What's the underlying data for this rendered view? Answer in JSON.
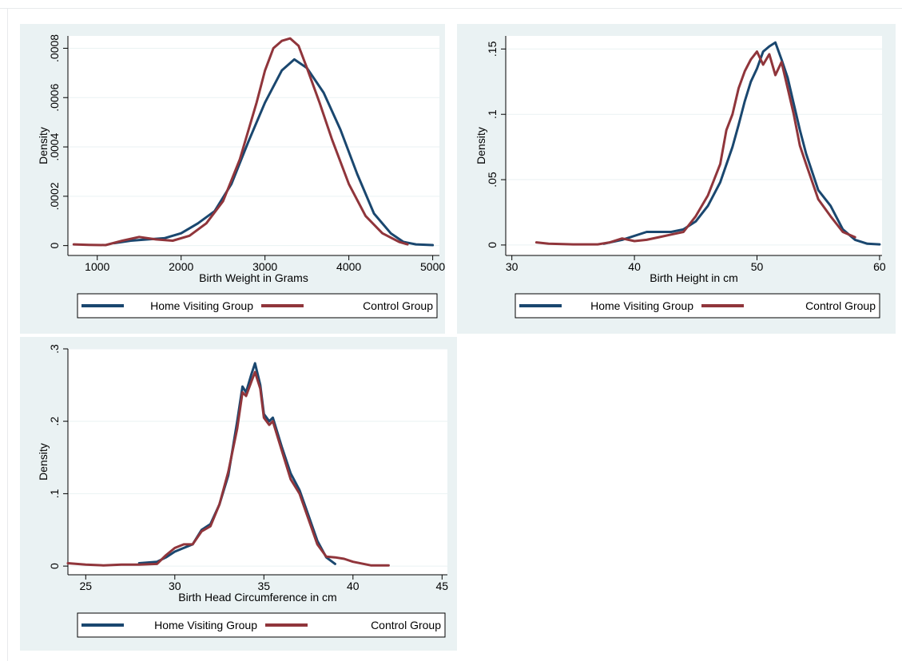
{
  "colors": {
    "panel_bg": "#eaf2f3",
    "plot_bg": "#ffffff",
    "grid": "#eaf2f3",
    "home_visiting": "#1a476f",
    "control": "#90353b"
  },
  "chart_data": [
    {
      "type": "line",
      "xlabel": "Birth Weight in Grams",
      "ylabel": "Density",
      "xlim": [
        650,
        5080
      ],
      "ylim": [
        -4e-05,
        0.00085
      ],
      "xticks": [
        1000,
        2000,
        3000,
        4000,
        5000
      ],
      "xtick_labels": [
        "1000",
        "2000",
        "3000",
        "4000",
        "5000"
      ],
      "yticks": [
        0,
        0.0002,
        0.0004,
        0.0006,
        0.0008
      ],
      "ytick_labels": [
        "0",
        ".0002",
        ".0004",
        ".0006",
        ".0008"
      ],
      "grid": true,
      "legend": {
        "position": "bottom",
        "entries": [
          "Home Visiting Group",
          "Control Group"
        ]
      },
      "series": [
        {
          "name": "Home Visiting Group",
          "color": "#1a476f",
          "x": [
            1200,
            1400,
            1600,
            1800,
            2000,
            2200,
            2400,
            2600,
            2800,
            3000,
            3200,
            3350,
            3500,
            3700,
            3900,
            4100,
            4300,
            4500,
            4650,
            4800,
            5000
          ],
          "y": [
            1e-05,
            2e-05,
            2.5e-05,
            3e-05,
            5e-05,
            9e-05,
            0.00014,
            0.00025,
            0.00042,
            0.00058,
            0.00071,
            0.000755,
            0.00072,
            0.00062,
            0.00047,
            0.00029,
            0.00013,
            5e-05,
            1.5e-05,
            5e-06,
            2e-06
          ]
        },
        {
          "name": "Control Group",
          "color": "#90353b",
          "x": [
            720,
            900,
            1100,
            1300,
            1500,
            1700,
            1900,
            2100,
            2300,
            2500,
            2700,
            2900,
            3000,
            3100,
            3200,
            3300,
            3400,
            3500,
            3650,
            3800,
            4000,
            4200,
            4400,
            4600,
            4700
          ],
          "y": [
            5e-06,
            3e-06,
            2e-06,
            2e-05,
            3.5e-05,
            2.5e-05,
            2e-05,
            4e-05,
            9e-05,
            0.00018,
            0.00035,
            0.00058,
            0.00071,
            0.0008,
            0.00083,
            0.00084,
            0.00081,
            0.00072,
            0.00058,
            0.00043,
            0.00025,
            0.00012,
            5e-05,
            1.5e-05,
            5e-06
          ]
        }
      ]
    },
    {
      "type": "line",
      "xlabel": "Birth Height in cm",
      "ylabel": "Density",
      "xlim": [
        29.5,
        60.2
      ],
      "ylim": [
        -0.008,
        0.16
      ],
      "xticks": [
        30,
        40,
        50,
        60
      ],
      "xtick_labels": [
        "30",
        "40",
        "50",
        "60"
      ],
      "yticks": [
        0,
        0.05,
        0.1,
        0.15
      ],
      "ytick_labels": [
        "0",
        ".05",
        ".1",
        ".15"
      ],
      "grid": true,
      "legend": {
        "position": "bottom",
        "entries": [
          "Home Visiting Group",
          "Control Group"
        ]
      },
      "series": [
        {
          "name": "Home Visiting Group",
          "color": "#1a476f",
          "x": [
            37.5,
            39,
            41,
            43,
            44,
            45,
            46,
            47,
            48,
            48.5,
            49,
            49.5,
            50,
            50.5,
            51,
            51.5,
            52,
            52.5,
            53,
            53.5,
            54,
            55,
            56,
            57,
            58,
            59,
            60
          ],
          "y": [
            0.001,
            0.004,
            0.01,
            0.01,
            0.012,
            0.018,
            0.03,
            0.048,
            0.075,
            0.092,
            0.11,
            0.125,
            0.135,
            0.148,
            0.152,
            0.155,
            0.142,
            0.128,
            0.108,
            0.088,
            0.07,
            0.042,
            0.03,
            0.012,
            0.004,
            0.001,
            0.0005
          ]
        },
        {
          "name": "Control Group",
          "color": "#90353b",
          "x": [
            32,
            33,
            35,
            37,
            38,
            39,
            40,
            41,
            42,
            43,
            44,
            45,
            46,
            47,
            47.5,
            48,
            48.5,
            49,
            49.5,
            50,
            50.5,
            51,
            51.5,
            52,
            52.5,
            53,
            53.5,
            54,
            55,
            56,
            57,
            58
          ],
          "y": [
            0.002,
            0.001,
            0.0005,
            0.0005,
            0.002,
            0.005,
            0.003,
            0.004,
            0.006,
            0.008,
            0.01,
            0.022,
            0.038,
            0.062,
            0.088,
            0.1,
            0.12,
            0.133,
            0.142,
            0.148,
            0.138,
            0.146,
            0.13,
            0.14,
            0.12,
            0.1,
            0.076,
            0.062,
            0.035,
            0.022,
            0.01,
            0.006
          ]
        }
      ]
    },
    {
      "type": "line",
      "xlabel": "Birth Head Circumference in cm",
      "ylabel": "Density",
      "xlim": [
        24,
        45.3
      ],
      "ylim": [
        -0.012,
        0.3
      ],
      "xticks": [
        25,
        30,
        35,
        40,
        45
      ],
      "xtick_labels": [
        "25",
        "30",
        "35",
        "40",
        "45"
      ],
      "yticks": [
        0,
        0.1,
        0.2,
        0.3
      ],
      "ytick_labels": [
        "0",
        ".1",
        ".2",
        ".3"
      ],
      "grid": true,
      "legend": {
        "position": "bottom",
        "entries": [
          "Home Visiting Group",
          "Control Group"
        ]
      },
      "series": [
        {
          "name": "Home Visiting Group",
          "color": "#1a476f",
          "x": [
            28,
            29,
            29.5,
            30,
            30.5,
            31,
            31.5,
            32,
            32.5,
            33,
            33.5,
            33.8,
            34,
            34.3,
            34.5,
            34.8,
            35,
            35.3,
            35.5,
            36,
            36.5,
            37,
            37.5,
            38,
            38.5,
            39
          ],
          "y": [
            0.004,
            0.006,
            0.012,
            0.02,
            0.025,
            0.03,
            0.05,
            0.058,
            0.085,
            0.125,
            0.2,
            0.248,
            0.24,
            0.265,
            0.28,
            0.25,
            0.21,
            0.2,
            0.205,
            0.165,
            0.128,
            0.105,
            0.07,
            0.035,
            0.012,
            0.003
          ]
        },
        {
          "name": "Control Group",
          "color": "#90353b",
          "x": [
            24,
            25,
            26,
            27,
            28,
            29,
            29.5,
            30,
            30.5,
            31,
            31.5,
            32,
            32.5,
            33,
            33.5,
            33.8,
            34,
            34.3,
            34.5,
            34.8,
            35,
            35.3,
            35.5,
            36,
            36.5,
            37,
            37.5,
            38,
            38.5,
            39,
            39.5,
            40,
            41,
            42
          ],
          "y": [
            0.004,
            0.002,
            0.001,
            0.002,
            0.002,
            0.003,
            0.015,
            0.025,
            0.03,
            0.03,
            0.048,
            0.055,
            0.085,
            0.13,
            0.19,
            0.24,
            0.235,
            0.255,
            0.268,
            0.245,
            0.205,
            0.195,
            0.2,
            0.16,
            0.12,
            0.1,
            0.065,
            0.03,
            0.013,
            0.012,
            0.01,
            0.006,
            0.001,
            0.001
          ]
        }
      ]
    }
  ]
}
